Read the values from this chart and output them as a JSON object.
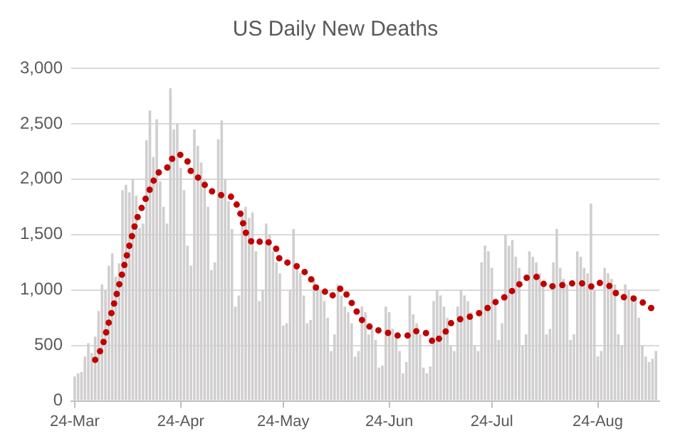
{
  "chart_data": {
    "type": "bar",
    "title": "US Daily New Deaths",
    "x": [
      "--03-24",
      "--03-25",
      "--03-26",
      "--03-27",
      "--03-28",
      "--03-29",
      "--03-30",
      "--03-31",
      "--04-01",
      "--04-02",
      "--04-03",
      "--04-04",
      "--04-05",
      "--04-06",
      "--04-07",
      "--04-08",
      "--04-09",
      "--04-10",
      "--04-11",
      "--04-12",
      "--04-13",
      "--04-14",
      "--04-15",
      "--04-16",
      "--04-17",
      "--04-18",
      "--04-19",
      "--04-20",
      "--04-21",
      "--04-22",
      "--04-23",
      "--04-24",
      "--04-25",
      "--04-26",
      "--04-27",
      "--04-28",
      "--04-29",
      "--04-30",
      "--05-01",
      "--05-02",
      "--05-03",
      "--05-04",
      "--05-05",
      "--05-06",
      "--05-07",
      "--05-08",
      "--05-09",
      "--05-10",
      "--05-11",
      "--05-12",
      "--05-13",
      "--05-14",
      "--05-15",
      "--05-16",
      "--05-17",
      "--05-18",
      "--05-19",
      "--05-20",
      "--05-21",
      "--05-22",
      "--05-23",
      "--05-24",
      "--05-25",
      "--05-26",
      "--05-27",
      "--05-28",
      "--05-29",
      "--05-30",
      "--05-31",
      "--06-01",
      "--06-02",
      "--06-03",
      "--06-04",
      "--06-05",
      "--06-06",
      "--06-07",
      "--06-08",
      "--06-09",
      "--06-10",
      "--06-11",
      "--06-12",
      "--06-13",
      "--06-14",
      "--06-15",
      "--06-16",
      "--06-17",
      "--06-18",
      "--06-19",
      "--06-20",
      "--06-21",
      "--06-22",
      "--06-23",
      "--06-24",
      "--06-25",
      "--06-26",
      "--06-27",
      "--06-28",
      "--06-29",
      "--06-30",
      "--07-01",
      "--07-02",
      "--07-03",
      "--07-04",
      "--07-05",
      "--07-06",
      "--07-07",
      "--07-08",
      "--07-09",
      "--07-10",
      "--07-11",
      "--07-12",
      "--07-13",
      "--07-14",
      "--07-15",
      "--07-16",
      "--07-17",
      "--07-18",
      "--07-19",
      "--07-20",
      "--07-21",
      "--07-22",
      "--07-23",
      "--07-24",
      "--07-25",
      "--07-26",
      "--07-27",
      "--07-28",
      "--07-29",
      "--07-30",
      "--07-31",
      "--08-01",
      "--08-02",
      "--08-03",
      "--08-04",
      "--08-05",
      "--08-06",
      "--08-07",
      "--08-08",
      "--08-09",
      "--08-10",
      "--08-11",
      "--08-12",
      "--08-13",
      "--08-14",
      "--08-15",
      "--08-16",
      "--08-17",
      "--08-18",
      "--08-19",
      "--08-20",
      "--08-21",
      "--08-22",
      "--08-23",
      "--08-24",
      "--08-25",
      "--08-26",
      "--08-27",
      "--08-28",
      "--08-29",
      "--08-30",
      "--08-31",
      "--09-01",
      "--09-02",
      "--09-03",
      "--09-04",
      "--09-05",
      "--09-06",
      "--09-07",
      "--09-08",
      "--09-09",
      "--09-10"
    ],
    "series": [
      {
        "color": "#d0cece",
        "values": [
          220,
          250,
          260,
          400,
          520,
          430,
          580,
          810,
          1050,
          1000,
          1220,
          1330,
          1120,
          1240,
          1900,
          1950,
          1880,
          2000,
          1850,
          1560,
          1600,
          2350,
          2620,
          2200,
          2540,
          1980,
          1750,
          1600,
          2820,
          2450,
          2500,
          2100,
          1900,
          1400,
          1220,
          2450,
          2300,
          2150,
          2000,
          1750,
          1180,
          1250,
          2360,
          2530,
          2000,
          1800,
          1550,
          850,
          950,
          1700,
          1750,
          1650,
          1700,
          1350,
          900,
          1000,
          1600,
          1500,
          1350,
          1250,
          1150,
          680,
          700,
          1000,
          1550,
          1200,
          1150,
          950,
          700,
          730,
          1100,
          1050,
          1000,
          900,
          750,
          450,
          600,
          1050,
          950,
          850,
          800,
          700,
          400,
          450,
          850,
          800,
          600,
          650,
          550,
          300,
          320,
          850,
          800,
          650,
          600,
          450,
          250,
          350,
          950,
          780,
          700,
          600,
          300,
          250,
          310,
          900,
          1000,
          950,
          850,
          750,
          500,
          450,
          850,
          1000,
          950,
          900,
          800,
          500,
          450,
          1250,
          1400,
          1350,
          1200,
          900,
          550,
          700,
          1500,
          1400,
          1450,
          1300,
          1200,
          500,
          600,
          1350,
          1300,
          1250,
          1150,
          1050,
          600,
          650,
          1250,
          1550,
          1200,
          1100,
          1050,
          550,
          600,
          1350,
          1300,
          1200,
          1150,
          1780,
          1000,
          400,
          450,
          1200,
          1150,
          1100,
          1050,
          600,
          500,
          1050,
          1000,
          950,
          900,
          750,
          500,
          400,
          350,
          380,
          450
        ]
      },
      {
        "type": "line",
        "color": "#c00000",
        "line_style": "dotted",
        "marker": "none",
        "x": [
          "--03-30",
          "--04-01",
          "--04-03",
          "--04-05",
          "--04-07",
          "--04-09",
          "--04-11",
          "--04-14",
          "--04-17",
          "--04-20",
          "--04-22",
          "--04-24",
          "--04-26",
          "--04-27",
          "--04-30",
          "--05-02",
          "--05-05",
          "--05-09",
          "--05-11",
          "--05-12",
          "--05-13",
          "--05-15",
          "--05-19",
          "--05-22",
          "--05-23",
          "--05-26",
          "--05-29",
          "--06-01",
          "--06-02",
          "--06-05",
          "--06-07",
          "--06-10",
          "--06-12",
          "--06-14",
          "--06-16",
          "--06-19",
          "--06-23",
          "--06-26",
          "--06-30",
          "--07-02",
          "--07-05",
          "--07-07",
          "--07-10",
          "--07-12",
          "--07-15",
          "--07-19",
          "--07-22",
          "--07-25",
          "--07-28",
          "--07-31",
          "--08-03",
          "--08-06",
          "--08-09",
          "--08-13",
          "--08-16",
          "--08-20",
          "--08-22",
          "--08-24",
          "--08-28",
          "--08-30",
          "--09-03",
          "--09-06",
          "--09-09"
        ],
        "values": [
          370,
          480,
          710,
          930,
          1160,
          1400,
          1630,
          1840,
          2050,
          2100,
          2210,
          2220,
          2160,
          2070,
          1990,
          1910,
          1860,
          1840,
          1740,
          1630,
          1520,
          1420,
          1450,
          1370,
          1270,
          1240,
          1200,
          1110,
          1030,
          990,
          940,
          1020,
          940,
          830,
          730,
          650,
          620,
          590,
          590,
          630,
          610,
          520,
          600,
          700,
          740,
          770,
          820,
          890,
          940,
          1020,
          1110,
          1120,
          1030,
          1040,
          1060,
          1060,
          1030,
          1070,
          1030,
          940,
          930,
          890,
          830
        ]
      }
    ],
    "xlim": [
      "--03-23",
      "--09-11"
    ],
    "xticks": [
      {
        "value": "--03-24",
        "label": "24-Mar"
      },
      {
        "value": "--04-24",
        "label": "24-Apr"
      },
      {
        "value": "--05-24",
        "label": "24-May"
      },
      {
        "value": "--06-24",
        "label": "24-Jun"
      },
      {
        "value": "--07-24",
        "label": "24-Jul"
      },
      {
        "value": "--08-24",
        "label": "24-Aug"
      }
    ],
    "ylim": [
      0,
      3000
    ],
    "yticks": [
      0,
      500,
      {
        "value": 1000,
        "label": "1,000"
      },
      {
        "value": 1500,
        "label": "1,500"
      },
      {
        "value": 2000,
        "label": "2,000"
      },
      {
        "value": 2500,
        "label": "2,500"
      },
      {
        "value": 3000,
        "label": "3,000"
      }
    ],
    "grid": "y",
    "legend": false
  }
}
